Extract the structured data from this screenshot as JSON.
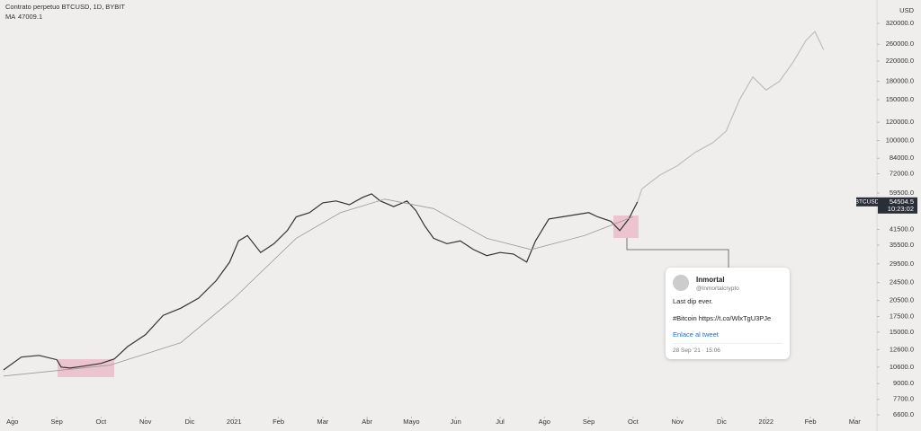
{
  "chart_data": {
    "type": "line",
    "title": "Contrato perpetuo BTCUSD, 1D, BYBIT",
    "indicator": "MA",
    "indicator_value": "47009.1",
    "currency": "USD",
    "symbol": "BTCUSD",
    "last_price": 54504.5,
    "countdown": "10:23:02",
    "log_scale": true,
    "grid": false,
    "xlim": [
      -0.28,
      19.5
    ],
    "xticks": [
      {
        "value": 0,
        "label": "Ago"
      },
      {
        "value": 1,
        "label": "Sep"
      },
      {
        "value": 2,
        "label": "Oct"
      },
      {
        "value": 3,
        "label": "Nov"
      },
      {
        "value": 4,
        "label": "Dic"
      },
      {
        "value": 5,
        "label": "2021"
      },
      {
        "value": 6,
        "label": "Feb"
      },
      {
        "value": 7,
        "label": "Mar"
      },
      {
        "value": 8,
        "label": "Abr"
      },
      {
        "value": 9,
        "label": "Mayo"
      },
      {
        "value": 10,
        "label": "Jun"
      },
      {
        "value": 11,
        "label": "Jul"
      },
      {
        "value": 12,
        "label": "Ago"
      },
      {
        "value": 13,
        "label": "Sep"
      },
      {
        "value": 14,
        "label": "Oct"
      },
      {
        "value": 15,
        "label": "Nov"
      },
      {
        "value": 16,
        "label": "Dic"
      },
      {
        "value": 17,
        "label": "2022"
      },
      {
        "value": 18,
        "label": "Feb"
      },
      {
        "value": 19,
        "label": "Mar"
      }
    ],
    "ylim": [
      6150,
      403000
    ],
    "yticks": [
      {
        "value": 320000,
        "label": "320000.0"
      },
      {
        "value": 260000,
        "label": "260000.0"
      },
      {
        "value": 220000,
        "label": "220000.0"
      },
      {
        "value": 180000,
        "label": "180000.0"
      },
      {
        "value": 150000,
        "label": "150000.0"
      },
      {
        "value": 120000,
        "label": "120000.0"
      },
      {
        "value": 100000,
        "label": "100000.0"
      },
      {
        "value": 84000,
        "label": "84000.0"
      },
      {
        "value": 72000,
        "label": "72000.0"
      },
      {
        "value": 59500,
        "label": "59500.0"
      },
      {
        "value": 41500,
        "label": "41500.0"
      },
      {
        "value": 35500,
        "label": "35500.0"
      },
      {
        "value": 29500,
        "label": "29500.0"
      },
      {
        "value": 24500,
        "label": "24500.0"
      },
      {
        "value": 20500,
        "label": "20500.0"
      },
      {
        "value": 17500,
        "label": "17500.0"
      },
      {
        "value": 15000,
        "label": "15000.0"
      },
      {
        "value": 12600,
        "label": "12600.0"
      },
      {
        "value": 10600,
        "label": "10600.0"
      },
      {
        "value": 9000,
        "label": "9000.0"
      },
      {
        "value": 7700,
        "label": "7700.0"
      },
      {
        "value": 6600,
        "label": "6600.0"
      }
    ],
    "series": [
      {
        "color": "#333333",
        "x": [
          -0.2,
          0.2,
          0.6,
          1.0,
          1.1,
          1.3,
          1.6,
          2.0,
          2.3,
          2.6,
          3.0,
          3.4,
          3.8,
          4.2,
          4.6,
          4.9,
          5.1,
          5.3,
          5.6,
          5.9,
          6.2,
          6.4,
          6.7,
          7.0,
          7.3,
          7.6,
          7.9,
          8.1,
          8.3,
          8.6,
          8.9,
          9.1,
          9.3,
          9.5,
          9.8,
          10.1,
          10.4,
          10.7,
          11.0,
          11.3,
          11.6,
          11.8,
          12.1,
          12.4,
          12.7,
          13.0,
          13.2,
          13.5,
          13.7,
          13.9,
          14.1
        ],
        "values": [
          10300,
          11700,
          11900,
          11400,
          10600,
          10500,
          10700,
          11000,
          11500,
          13000,
          14600,
          17700,
          19000,
          21000,
          25000,
          30000,
          37000,
          39000,
          33000,
          36000,
          41000,
          47000,
          49000,
          54000,
          55000,
          53000,
          57000,
          59000,
          55000,
          52000,
          55000,
          50000,
          43000,
          38000,
          36000,
          37000,
          34000,
          32000,
          33000,
          32500,
          30000,
          37000,
          46000,
          47000,
          48000,
          49000,
          47000,
          45000,
          41000,
          46000,
          54500
        ]
      },
      {
        "color": "#9a9a9a",
        "x": [
          -0.2,
          2.2,
          3.8,
          5.0,
          6.4,
          7.4,
          8.4,
          9.5,
          10.7,
          11.7,
          12.9,
          14.0
        ],
        "values": [
          9700,
          10800,
          13500,
          21000,
          38000,
          49000,
          56000,
          51000,
          38000,
          34000,
          39000,
          47000
        ]
      },
      {
        "color": "#bdbdbd",
        "x": [
          14.1,
          14.2,
          14.6,
          15.0,
          15.4,
          15.8,
          16.1,
          16.4,
          16.7,
          17.0,
          17.3,
          17.6,
          17.9,
          18.1,
          18.3
        ],
        "values": [
          54500,
          62000,
          71000,
          78000,
          89000,
          98000,
          110000,
          150000,
          188000,
          165000,
          180000,
          216000,
          270000,
          295000,
          246000
        ]
      }
    ]
  },
  "tweet": {
    "name": "Inmortal",
    "handle": "@Inmortalcrypto",
    "line1": "Last dip ever.",
    "line2": "#Bitcoin https://t.co/WlxTgU3PJe",
    "link": "Enlace al tweet",
    "date": "28 Sep '21 · 15:06"
  }
}
